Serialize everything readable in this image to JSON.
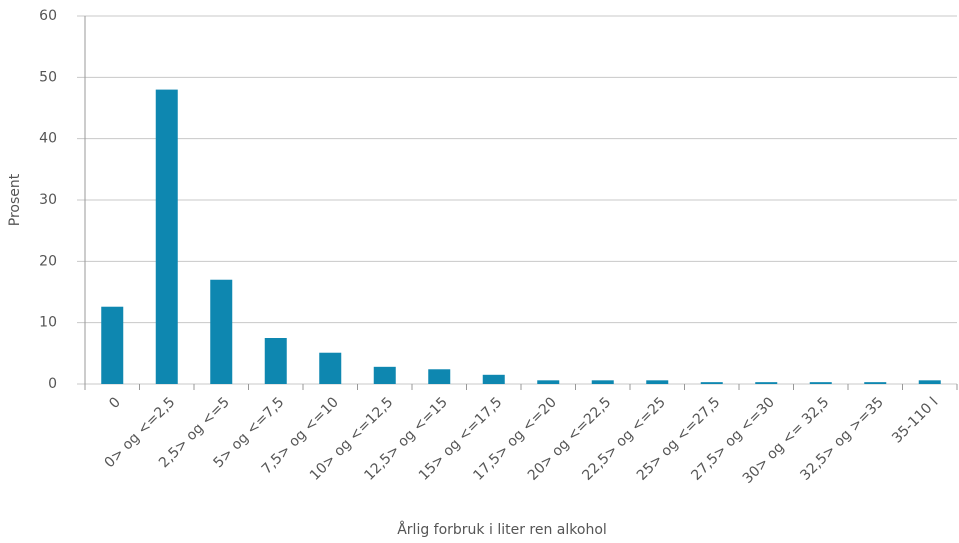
{
  "chart_data": {
    "type": "bar",
    "x_label": "Årlig forbruk i liter ren alkohol",
    "y_label": "Prosent",
    "categories": [
      "0",
      "0> og <=2,5",
      "2,5> og <=5",
      "5> og <=7,5",
      "7,5> og <=10",
      "10> og <=12,5",
      "12,5> og <=15",
      "15> og <=17,5",
      "17,5> og <=20",
      "20> og <=22,5",
      "22,5> og <=25",
      "25> og <=27,5",
      "27,5> og <=30",
      "30> og <= 32,5",
      "32,5> og >=35",
      "35-110 l"
    ],
    "values": [
      12.6,
      48,
      17,
      7.5,
      5.1,
      2.8,
      2.4,
      1.5,
      0.6,
      0.6,
      0.6,
      0.3,
      0.3,
      0.3,
      0.3,
      0.6
    ],
    "color": "#0e87b0",
    "ylim": [
      0,
      60
    ],
    "yticks": [
      0,
      10,
      20,
      30,
      40,
      50,
      60
    ],
    "grid": true
  }
}
